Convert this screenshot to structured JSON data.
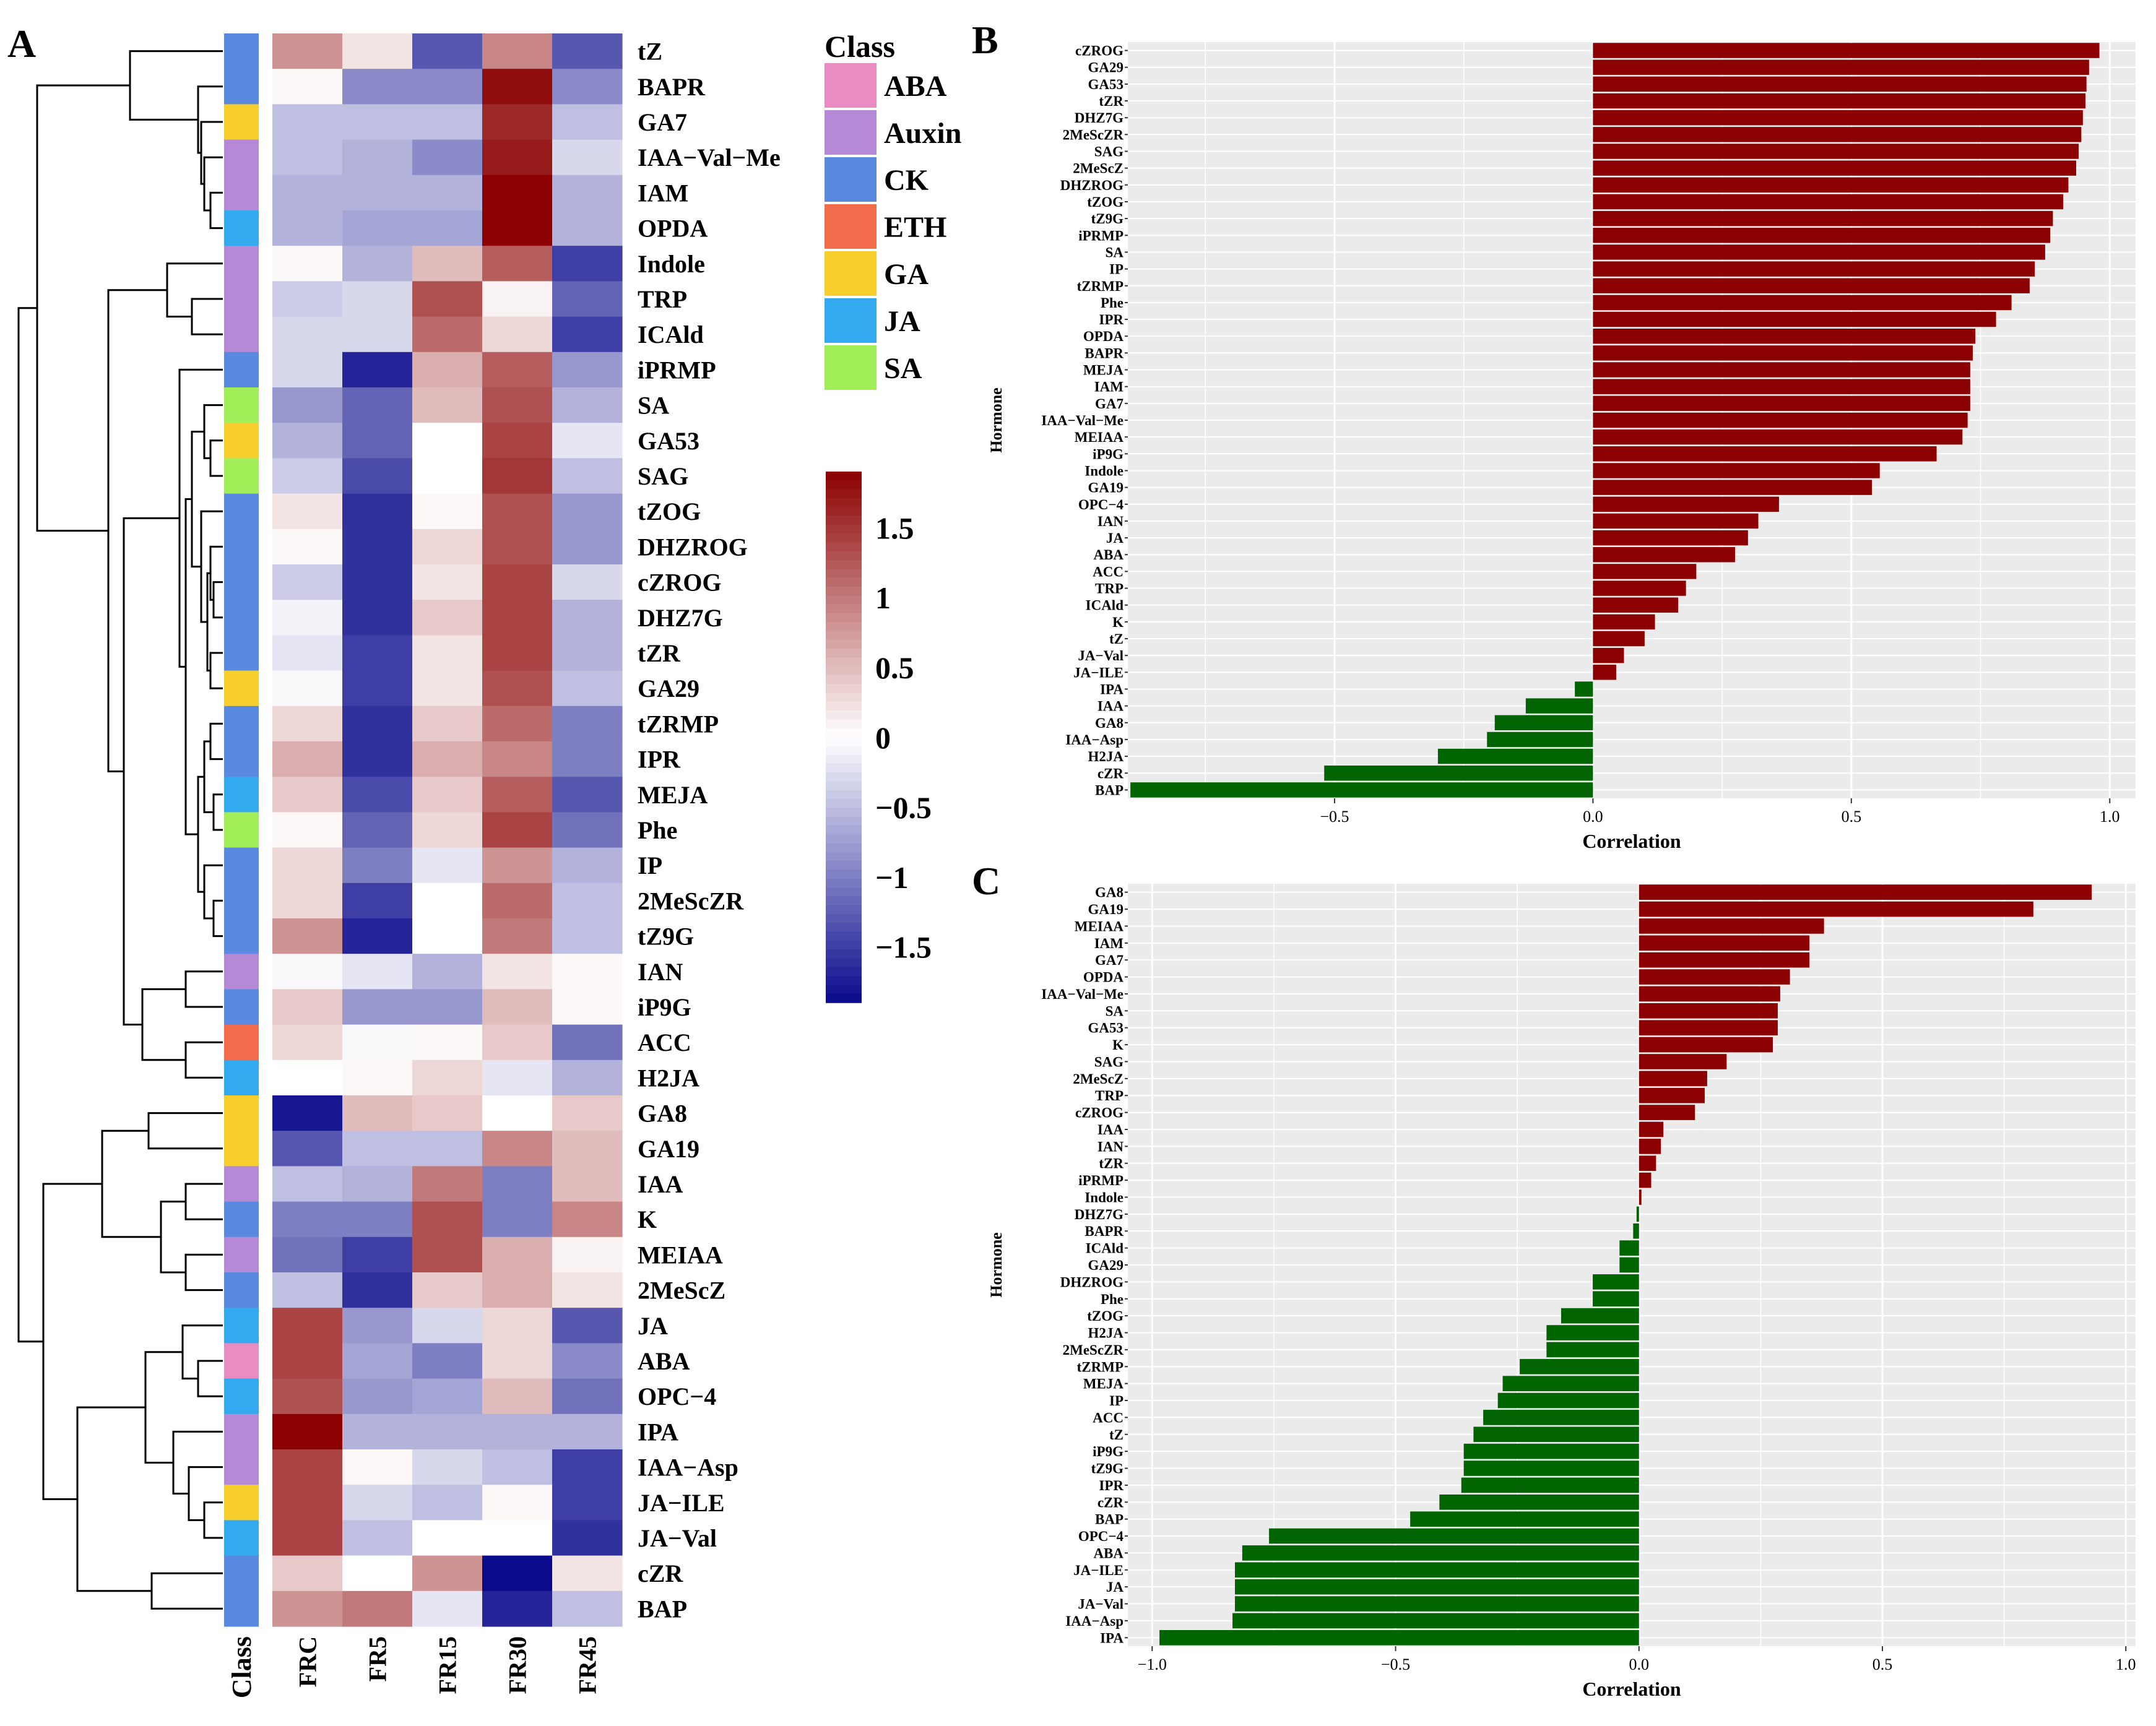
{
  "figure": {
    "panel_a_label": "A",
    "panel_b_label": "B",
    "panel_c_label": "C"
  },
  "chart_data": [
    {
      "panel": "A",
      "type": "heatmap",
      "title": "",
      "rows": [
        "tZ",
        "BAPR",
        "GA7",
        "IAA−Val−Me",
        "IAM",
        "OPDA",
        "Indole",
        "TRP",
        "ICAld",
        "iPRMP",
        "SA",
        "GA53",
        "SAG",
        "tZOG",
        "DHZROG",
        "cZROG",
        "DHZ7G",
        "tZR",
        "GA29",
        "tZRMP",
        "IPR",
        "MEJA",
        "Phe",
        "IP",
        "2MeScZR",
        "tZ9G",
        "IAN",
        "iP9G",
        "ACC",
        "H2JA",
        "GA8",
        "GA19",
        "IAA",
        "K",
        "MEIAA",
        "2MeScZ",
        "JA",
        "ABA",
        "OPC−4",
        "IPA",
        "IAA−Asp",
        "JA−ILE",
        "JA−Val",
        "cZR",
        "BAP"
      ],
      "columns": [
        "FRC",
        "FR5",
        "FR15",
        "FR30",
        "FR45"
      ],
      "class_column_label": "Class",
      "row_classes": [
        "CK",
        "CK",
        "GA",
        "Auxin",
        "Auxin",
        "JA",
        "Auxin",
        "Auxin",
        "Auxin",
        "CK",
        "SA",
        "GA",
        "SA",
        "CK",
        "CK",
        "CK",
        "CK",
        "CK",
        "GA",
        "CK",
        "CK",
        "JA",
        "SA",
        "CK",
        "CK",
        "CK",
        "Auxin",
        "CK",
        "ETH",
        "JA",
        "GA",
        "GA",
        "Auxin",
        "CK",
        "Auxin",
        "CK",
        "JA",
        "ABA",
        "JA",
        "Auxin",
        "Auxin",
        "GA",
        "JA",
        "CK",
        "CK"
      ],
      "values": [
        [
          0.8,
          0.2,
          -1.3,
          0.9,
          -1.3
        ],
        [
          0.05,
          -0.9,
          -0.9,
          1.8,
          -0.9
        ],
        [
          -0.5,
          -0.5,
          -0.5,
          1.6,
          -0.5
        ],
        [
          -0.5,
          -0.6,
          -0.9,
          1.7,
          -0.3
        ],
        [
          -0.6,
          -0.6,
          -0.6,
          1.9,
          -0.6
        ],
        [
          -0.6,
          -0.7,
          -0.7,
          1.9,
          -0.6
        ],
        [
          0.05,
          -0.6,
          0.5,
          1.2,
          -1.5
        ],
        [
          -0.4,
          -0.3,
          1.3,
          0.1,
          -1.2
        ],
        [
          -0.3,
          -0.3,
          1.1,
          0.3,
          -1.5
        ],
        [
          -0.3,
          -1.7,
          0.6,
          1.2,
          -0.8
        ],
        [
          -0.8,
          -1.2,
          0.5,
          1.3,
          -0.6
        ],
        [
          -0.6,
          -1.2,
          0.0,
          1.4,
          -0.2
        ],
        [
          -0.4,
          -1.4,
          0.0,
          1.5,
          -0.5
        ],
        [
          0.2,
          -1.6,
          0.05,
          1.3,
          -0.8
        ],
        [
          0.05,
          -1.6,
          0.3,
          1.3,
          -0.8
        ],
        [
          -0.4,
          -1.6,
          0.2,
          1.4,
          -0.3
        ],
        [
          -0.1,
          -1.6,
          0.4,
          1.4,
          -0.6
        ],
        [
          -0.2,
          -1.5,
          0.2,
          1.4,
          -0.6
        ],
        [
          -0.05,
          -1.5,
          0.2,
          1.3,
          -0.5
        ],
        [
          0.3,
          -1.6,
          0.4,
          1.1,
          -1.0
        ],
        [
          0.6,
          -1.6,
          0.6,
          0.9,
          -1.0
        ],
        [
          0.4,
          -1.4,
          0.4,
          1.2,
          -1.3
        ],
        [
          0.05,
          -1.2,
          0.3,
          1.4,
          -1.1
        ],
        [
          0.3,
          -1.0,
          -0.2,
          0.8,
          -0.6
        ],
        [
          0.3,
          -1.5,
          0.0,
          1.1,
          -0.5
        ],
        [
          0.8,
          -1.7,
          0.0,
          1.0,
          -0.5
        ],
        [
          -0.05,
          -0.2,
          -0.6,
          0.2,
          0.05
        ],
        [
          0.4,
          -0.8,
          -0.8,
          0.5,
          0.05
        ],
        [
          0.3,
          -0.05,
          0.05,
          0.4,
          -1.1
        ],
        [
          0.0,
          0.05,
          0.3,
          -0.2,
          -0.6
        ],
        [
          -1.8,
          0.5,
          0.4,
          0.0,
          0.4
        ],
        [
          -1.3,
          -0.5,
          -0.5,
          0.9,
          0.5
        ],
        [
          -0.5,
          -0.6,
          1.0,
          -1.0,
          0.5
        ],
        [
          -1.0,
          -1.0,
          1.3,
          -1.0,
          0.9
        ],
        [
          -1.1,
          -1.5,
          1.3,
          0.6,
          0.1
        ],
        [
          -0.5,
          -1.6,
          0.4,
          0.6,
          0.2
        ],
        [
          1.4,
          -0.8,
          -0.3,
          0.3,
          -1.3
        ],
        [
          1.4,
          -0.7,
          -1.0,
          0.3,
          -0.9
        ],
        [
          1.3,
          -0.8,
          -0.7,
          0.5,
          -1.1
        ],
        [
          1.9,
          -0.6,
          -0.6,
          -0.6,
          -0.6
        ],
        [
          1.4,
          0.05,
          -0.3,
          -0.5,
          -1.5
        ],
        [
          1.4,
          -0.3,
          -0.5,
          0.05,
          -1.5
        ],
        [
          1.4,
          -0.5,
          0.0,
          0.0,
          -1.6
        ],
        [
          0.4,
          0.0,
          0.8,
          -1.9,
          0.2
        ],
        [
          0.8,
          1.0,
          -0.2,
          -1.7,
          -0.5
        ]
      ],
      "legend": {
        "class_title": "Class",
        "classes": [
          "ABA",
          "Auxin",
          "CK",
          "ETH",
          "GA",
          "JA",
          "SA"
        ],
        "class_colors": {
          "ABA": "#E88CC2",
          "Auxin": "#B589D6",
          "CK": "#5A8AE0",
          "ETH": "#F36C4B",
          "GA": "#F6CF2F",
          "JA": "#33AAF0",
          "SA": "#A2EE58"
        },
        "color_ticks": [
          "1.5",
          "1",
          "0.5",
          "0",
          "−0.5",
          "−1",
          "−1.5"
        ],
        "color_range": [
          -1.9,
          1.9
        ],
        "color_low": "#0A0A8C",
        "color_mid": "#FFFFFF",
        "color_high": "#8B0000"
      }
    },
    {
      "panel": "B",
      "type": "bar",
      "orientation": "horizontal",
      "xlabel": "Correlation",
      "ylabel": "Hormone",
      "xlim": [
        -0.9,
        1.05
      ],
      "xticks": [
        -0.5,
        0.0,
        0.5,
        1.0
      ],
      "xtick_labels": [
        "−0.5",
        "0.0",
        "0.5",
        "1.0"
      ],
      "positive_color": "#8B0000",
      "negative_color": "#006400",
      "categories": [
        "cZROG",
        "GA29",
        "GA53",
        "tZR",
        "DHZ7G",
        "2MeScZR",
        "SAG",
        "2MeScZ",
        "DHZROG",
        "tZOG",
        "tZ9G",
        "iPRMP",
        "SA",
        "IP",
        "tZRMP",
        "Phe",
        "IPR",
        "OPDA",
        "BAPR",
        "MEJA",
        "IAM",
        "GA7",
        "IAA−Val−Me",
        "MEIAA",
        "iP9G",
        "Indole",
        "GA19",
        "OPC−4",
        "IAN",
        "JA",
        "ABA",
        "ACC",
        "TRP",
        "ICAld",
        "K",
        "tZ",
        "JA−Val",
        "JA−ILE",
        "IPA",
        "IAA",
        "GA8",
        "IAA−Asp",
        "H2JA",
        "cZR",
        "BAP"
      ],
      "values": [
        0.98,
        0.96,
        0.955,
        0.953,
        0.948,
        0.945,
        0.94,
        0.935,
        0.92,
        0.91,
        0.89,
        0.885,
        0.875,
        0.855,
        0.845,
        0.81,
        0.78,
        0.74,
        0.735,
        0.73,
        0.73,
        0.73,
        0.725,
        0.715,
        0.665,
        0.555,
        0.54,
        0.36,
        0.32,
        0.3,
        0.275,
        0.2,
        0.18,
        0.165,
        0.12,
        0.1,
        0.06,
        0.045,
        -0.035,
        -0.13,
        -0.19,
        -0.205,
        -0.3,
        -0.52,
        -0.895
      ]
    },
    {
      "panel": "C",
      "type": "bar",
      "orientation": "horizontal",
      "xlabel": "Correlation",
      "ylabel": "Hormone",
      "xlim": [
        -1.05,
        1.02
      ],
      "xticks": [
        -1.0,
        -0.5,
        0.0,
        0.5,
        1.0
      ],
      "xtick_labels": [
        "−1.0",
        "−0.5",
        "0.0",
        "0.5",
        "1.0"
      ],
      "positive_color": "#8B0000",
      "negative_color": "#006400",
      "categories": [
        "GA8",
        "GA19",
        "MEIAA",
        "IAM",
        "GA7",
        "OPDA",
        "IAA−Val−Me",
        "SA",
        "GA53",
        "K",
        "SAG",
        "2MeScZ",
        "TRP",
        "cZROG",
        "IAA",
        "IAN",
        "tZR",
        "iPRMP",
        "Indole",
        "DHZ7G",
        "BAPR",
        "ICAld",
        "GA29",
        "DHZROG",
        "Phe",
        "tZOG",
        "H2JA",
        "2MeScZR",
        "tZRMP",
        "MEJA",
        "IP",
        "ACC",
        "tZ",
        "iP9G",
        "tZ9G",
        "IPR",
        "cZR",
        "BAP",
        "OPC−4",
        "ABA",
        "JA−ILE",
        "JA",
        "JA−Val",
        "IAA−Asp",
        "IPA"
      ],
      "values": [
        0.93,
        0.81,
        0.38,
        0.35,
        0.35,
        0.31,
        0.29,
        0.285,
        0.285,
        0.275,
        0.18,
        0.14,
        0.135,
        0.115,
        0.05,
        0.045,
        0.035,
        0.025,
        0.005,
        -0.005,
        -0.012,
        -0.04,
        -0.04,
        -0.095,
        -0.095,
        -0.16,
        -0.19,
        -0.19,
        -0.245,
        -0.28,
        -0.29,
        -0.32,
        -0.34,
        -0.36,
        -0.36,
        -0.365,
        -0.41,
        -0.47,
        -0.76,
        -0.815,
        -0.83,
        -0.83,
        -0.83,
        -0.835,
        -0.985
      ]
    }
  ]
}
